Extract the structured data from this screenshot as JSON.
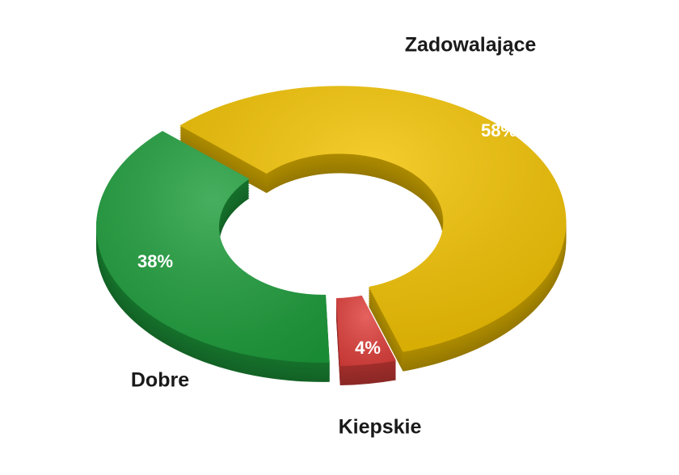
{
  "chart_data": {
    "type": "donut",
    "categories": [
      "Zadowalające",
      "Kiepskie",
      "Dobre"
    ],
    "values": [
      58,
      4,
      38
    ],
    "value_labels": [
      "58%",
      "4%",
      "38%"
    ],
    "colors": [
      "#f2c200",
      "#e0403c",
      "#1e9e3c"
    ]
  }
}
